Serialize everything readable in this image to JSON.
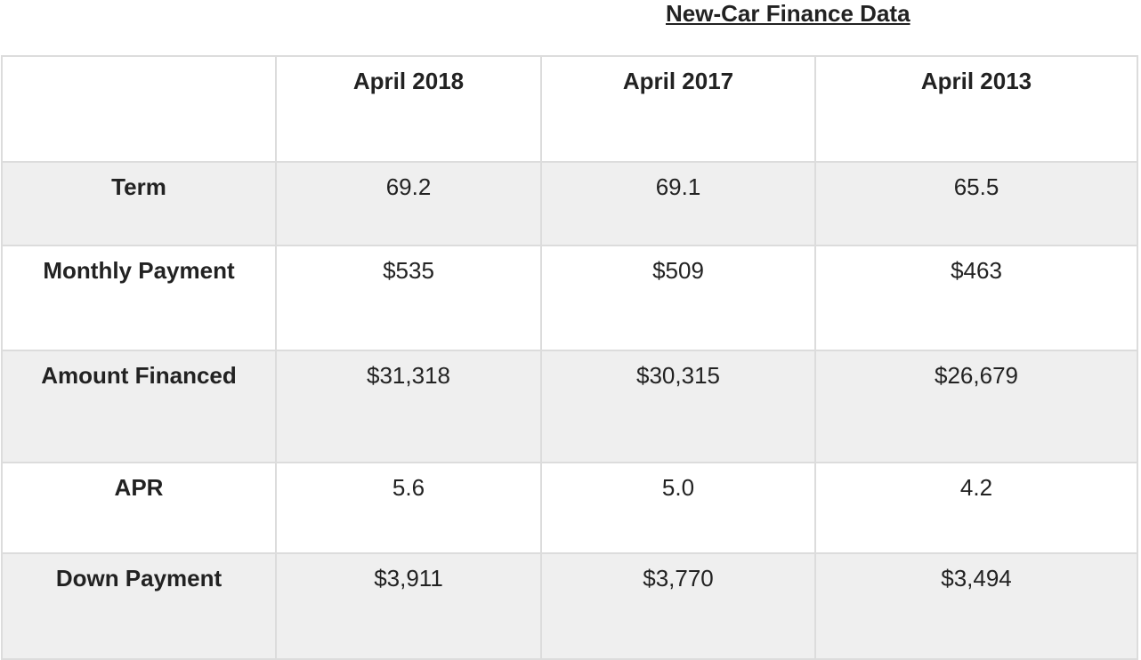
{
  "title": "New-Car Finance Data",
  "chart_data": {
    "type": "table",
    "title": "New-Car Finance Data",
    "columns": [
      "",
      "April 2018",
      "April 2017",
      "April 2013"
    ],
    "rows": [
      {
        "label": "Term",
        "values": [
          "69.2",
          "69.1",
          "65.5"
        ]
      },
      {
        "label": "Monthly Payment",
        "values": [
          "$535",
          "$509",
          "$463"
        ]
      },
      {
        "label": "Amount Financed",
        "values": [
          "$31,318",
          "$30,315",
          "$26,679"
        ]
      },
      {
        "label": "APR",
        "values": [
          "5.6",
          "5.0",
          "4.2"
        ]
      },
      {
        "label": "Down Payment",
        "values": [
          "$3,911",
          "$3,770",
          "$3,494"
        ]
      }
    ],
    "shaded_rows": [
      0,
      2,
      4
    ],
    "colors": {
      "shade": "#efefef",
      "border": "#dcdcdc",
      "text": "#222222"
    }
  }
}
